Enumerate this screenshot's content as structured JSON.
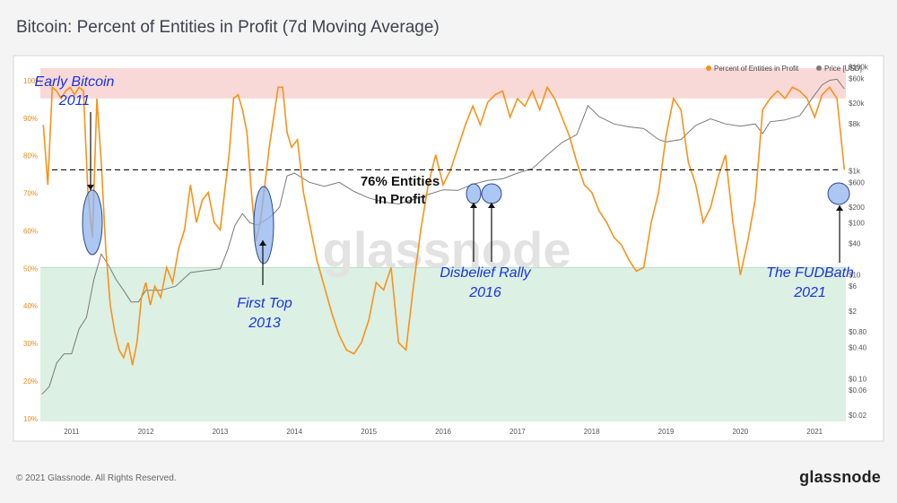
{
  "header": {
    "title": "Bitcoin: Percent of Entities in Profit (7d Moving Average)"
  },
  "footer": {
    "copyright": "© 2021 Glassnode. All Rights Reserved.",
    "brand": "glassnode"
  },
  "watermark": "glassnode",
  "legend": {
    "percent": "Percent of Entities in Profit",
    "price": "Price [USD]"
  },
  "colors": {
    "percent": "#f7931a",
    "price": "#7a7a7a",
    "band_high": "#f9d9d7",
    "band_low": "#dcf0e4",
    "annotation_text": "#1833e0",
    "circle_fill": "#8fb4ee"
  },
  "annotations": {
    "early": {
      "line1": "Early Bitcoin",
      "line2": "2011"
    },
    "first_top": {
      "line1": "First Top",
      "line2": "2013"
    },
    "threshold": {
      "line1": "76% Entities",
      "line2": "In Profit"
    },
    "disbelief": {
      "line1": "Disbelief Rally",
      "line2": "2016"
    },
    "fudbath": {
      "line1": "The FUDBath",
      "line2": "2021"
    }
  },
  "chart_data": {
    "type": "line",
    "title": "Bitcoin: Percent of Entities in Profit (7d Moving Average)",
    "xlabel": "",
    "ylabel": "",
    "x_ticks": [
      "2011",
      "2012",
      "2013",
      "2014",
      "2015",
      "2016",
      "2017",
      "2018",
      "2019",
      "2020",
      "2021"
    ],
    "y_left_ticks": [
      "10%",
      "20%",
      "30%",
      "40%",
      "50%",
      "60%",
      "70%",
      "80%",
      "90%",
      "100%"
    ],
    "y_right_ticks": [
      "$0.02",
      "$0.06",
      "$0.10",
      "$0.40",
      "$0.80",
      "$2",
      "$6",
      "$10",
      "$40",
      "$100",
      "$200",
      "$600",
      "$1k",
      "$8k",
      "$20k",
      "$60k",
      "$100k"
    ],
    "ylim_left": [
      0.09,
      1.05
    ],
    "ylim_right": [
      0.015,
      130000
    ],
    "reference_line": 0.76,
    "bands": {
      "high_from": 0.95,
      "low_to": 0.5
    },
    "series": [
      {
        "name": "Percent of Entities in Profit",
        "axis": "left",
        "x": [
          2010.62,
          2010.68,
          2010.74,
          2010.8,
          2010.86,
          2010.92,
          2010.98,
          2011.04,
          2011.1,
          2011.16,
          2011.22,
          2011.28,
          2011.34,
          2011.4,
          2011.46,
          2011.52,
          2011.58,
          2011.64,
          2011.7,
          2011.76,
          2011.82,
          2011.88,
          2011.94,
          2012.0,
          2012.06,
          2012.12,
          2012.2,
          2012.28,
          2012.36,
          2012.44,
          2012.52,
          2012.6,
          2012.68,
          2012.76,
          2012.84,
          2012.92,
          2013.0,
          2013.06,
          2013.12,
          2013.18,
          2013.24,
          2013.3,
          2013.36,
          2013.42,
          2013.48,
          2013.54,
          2013.6,
          2013.66,
          2013.72,
          2013.78,
          2013.84,
          2013.9,
          2013.96,
          2014.04,
          2014.12,
          2014.2,
          2014.3,
          2014.4,
          2014.5,
          2014.6,
          2014.7,
          2014.8,
          2014.9,
          2015.0,
          2015.1,
          2015.2,
          2015.3,
          2015.4,
          2015.5,
          2015.6,
          2015.7,
          2015.8,
          2015.9,
          2016.0,
          2016.1,
          2016.2,
          2016.3,
          2016.4,
          2016.5,
          2016.6,
          2016.7,
          2016.8,
          2016.9,
          2017.0,
          2017.1,
          2017.2,
          2017.3,
          2017.4,
          2017.5,
          2017.6,
          2017.7,
          2017.8,
          2017.9,
          2018.0,
          2018.1,
          2018.2,
          2018.3,
          2018.4,
          2018.5,
          2018.6,
          2018.7,
          2018.8,
          2018.9,
          2019.0,
          2019.1,
          2019.2,
          2019.3,
          2019.4,
          2019.5,
          2019.6,
          2019.7,
          2019.8,
          2019.9,
          2020.0,
          2020.1,
          2020.2,
          2020.25,
          2020.3,
          2020.4,
          2020.5,
          2020.6,
          2020.7,
          2020.8,
          2020.9,
          2021.0,
          2021.1,
          2021.2,
          2021.3,
          2021.4
        ],
        "values": [
          0.88,
          0.72,
          0.98,
          0.97,
          0.95,
          0.97,
          0.98,
          0.96,
          0.98,
          0.97,
          0.7,
          0.58,
          0.95,
          0.78,
          0.55,
          0.4,
          0.33,
          0.28,
          0.26,
          0.3,
          0.24,
          0.3,
          0.42,
          0.46,
          0.4,
          0.45,
          0.42,
          0.5,
          0.46,
          0.55,
          0.6,
          0.72,
          0.62,
          0.68,
          0.7,
          0.62,
          0.6,
          0.7,
          0.8,
          0.95,
          0.96,
          0.92,
          0.86,
          0.7,
          0.57,
          0.62,
          0.72,
          0.82,
          0.9,
          0.98,
          0.98,
          0.86,
          0.82,
          0.84,
          0.7,
          0.62,
          0.52,
          0.45,
          0.38,
          0.32,
          0.28,
          0.27,
          0.3,
          0.36,
          0.46,
          0.44,
          0.5,
          0.3,
          0.28,
          0.45,
          0.6,
          0.72,
          0.8,
          0.72,
          0.76,
          0.82,
          0.88,
          0.93,
          0.88,
          0.94,
          0.96,
          0.97,
          0.9,
          0.95,
          0.93,
          0.97,
          0.92,
          0.98,
          0.95,
          0.9,
          0.85,
          0.78,
          0.72,
          0.7,
          0.65,
          0.62,
          0.58,
          0.56,
          0.52,
          0.49,
          0.5,
          0.62,
          0.7,
          0.85,
          0.95,
          0.92,
          0.78,
          0.72,
          0.62,
          0.66,
          0.74,
          0.8,
          0.62,
          0.48,
          0.57,
          0.68,
          0.8,
          0.92,
          0.95,
          0.97,
          0.95,
          0.98,
          0.97,
          0.95,
          0.9,
          0.96,
          0.98,
          0.95,
          0.76
        ]
      },
      {
        "name": "Price [USD]",
        "axis": "right",
        "x": [
          2010.6,
          2010.7,
          2010.8,
          2010.9,
          2011.0,
          2011.1,
          2011.2,
          2011.3,
          2011.4,
          2011.5,
          2011.6,
          2011.7,
          2011.8,
          2011.9,
          2012.0,
          2012.2,
          2012.4,
          2012.6,
          2012.8,
          2013.0,
          2013.1,
          2013.2,
          2013.3,
          2013.4,
          2013.5,
          2013.6,
          2013.7,
          2013.8,
          2013.9,
          2014.0,
          2014.2,
          2014.4,
          2014.6,
          2014.8,
          2015.0,
          2015.2,
          2015.4,
          2015.6,
          2015.8,
          2016.0,
          2016.2,
          2016.4,
          2016.6,
          2016.8,
          2017.0,
          2017.2,
          2017.4,
          2017.6,
          2017.8,
          2017.95,
          2018.1,
          2018.3,
          2018.5,
          2018.7,
          2018.9,
          2019.0,
          2019.2,
          2019.4,
          2019.6,
          2019.8,
          2020.0,
          2020.2,
          2020.3,
          2020.4,
          2020.6,
          2020.8,
          2021.0,
          2021.1,
          2021.2,
          2021.3,
          2021.4
        ],
        "values": [
          0.05,
          0.07,
          0.2,
          0.3,
          0.3,
          0.9,
          1.5,
          8,
          25,
          15,
          8,
          5,
          3,
          3,
          5,
          5,
          6,
          11,
          12,
          13,
          30,
          90,
          150,
          100,
          90,
          110,
          140,
          200,
          800,
          900,
          600,
          500,
          600,
          400,
          300,
          250,
          230,
          280,
          350,
          430,
          420,
          550,
          650,
          700,
          900,
          1100,
          2000,
          3500,
          5000,
          18000,
          11000,
          8000,
          7000,
          6500,
          4000,
          3600,
          4000,
          7500,
          10000,
          8000,
          7200,
          8000,
          5200,
          8800,
          9500,
          11500,
          29000,
          45000,
          55000,
          58000,
          38000
        ]
      }
    ]
  }
}
